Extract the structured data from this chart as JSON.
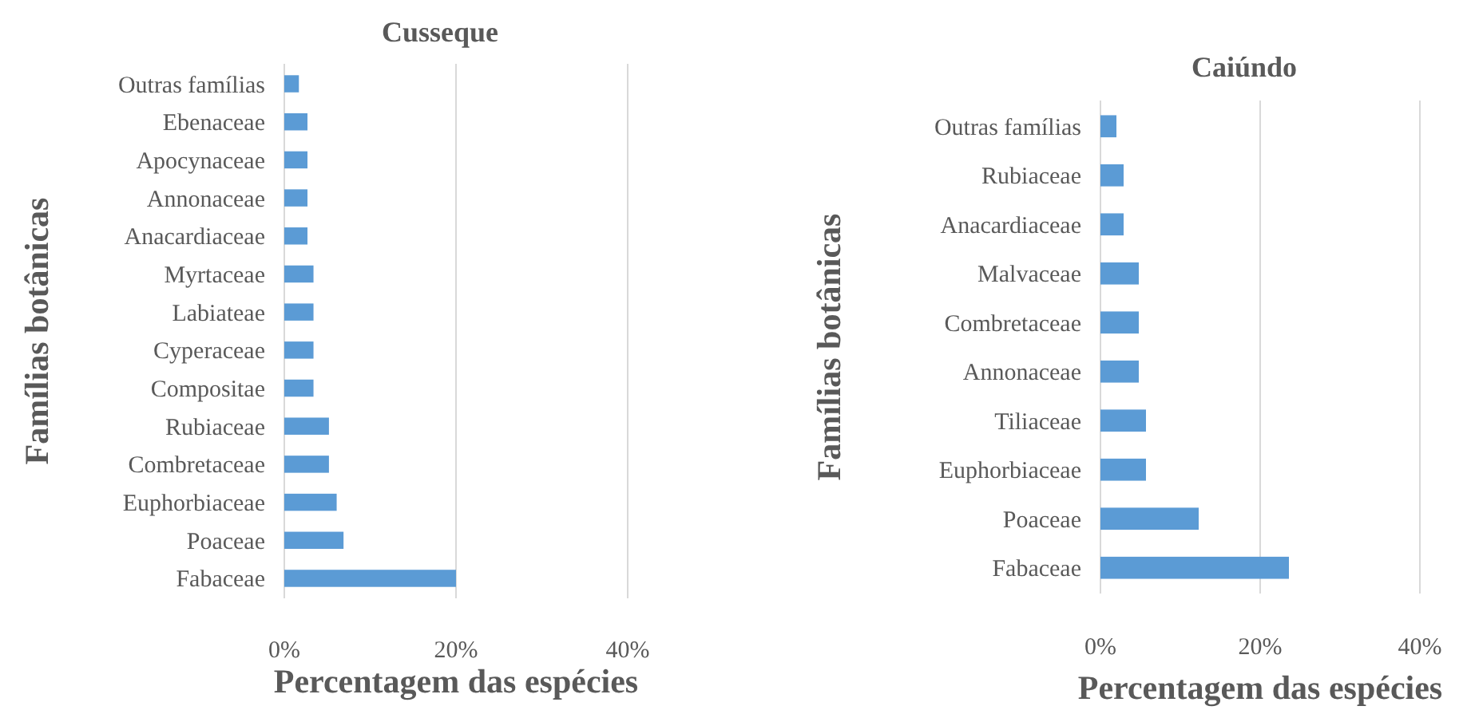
{
  "chart_data": [
    {
      "type": "bar",
      "orientation": "horizontal",
      "title": "Cusseque",
      "xlabel": "Percentagem das espécies",
      "ylabel": "Famílias botânicas",
      "categories": [
        "Outras famílias",
        "Ebenaceae",
        "Apocynaceae",
        "Annonaceae",
        "Anacardiaceae",
        "Myrtaceae",
        "Labiateae",
        "Cyperaceae",
        "Compositae",
        "Rubiaceae",
        "Combretaceae",
        "Euphorbiaceae",
        "Poaceae",
        "Fabaceae"
      ],
      "values": [
        1.7,
        2.7,
        2.7,
        2.7,
        2.7,
        3.4,
        3.4,
        3.4,
        3.4,
        5.2,
        5.2,
        6.1,
        6.9,
        20
      ],
      "color": "#5b9bd5",
      "xlim": [
        0,
        40
      ],
      "xticks": [
        {
          "value": 0,
          "label": "0%"
        },
        {
          "value": 20,
          "label": "20%"
        },
        {
          "value": 40,
          "label": "40%"
        }
      ],
      "grid": "x"
    },
    {
      "type": "bar",
      "orientation": "horizontal",
      "title": "Caiúndo",
      "xlabel": "Percentagem das espécies",
      "ylabel": "Famílias botânicas",
      "categories": [
        "Outras famílias",
        "Rubiaceae",
        "Anacardiaceae",
        "Malvaceae",
        "Combretaceae",
        "Annonaceae",
        "Tiliaceae",
        "Euphorbiaceae",
        "Poaceae",
        "Fabaceae"
      ],
      "values": [
        2.0,
        2.9,
        2.9,
        4.8,
        4.8,
        4.8,
        5.7,
        5.7,
        12.3,
        23.6
      ],
      "color": "#5b9bd5",
      "xlim": [
        0,
        40
      ],
      "xticks": [
        {
          "value": 0,
          "label": "0%"
        },
        {
          "value": 20,
          "label": "20%"
        },
        {
          "value": 40,
          "label": "40%"
        }
      ],
      "grid": "x"
    }
  ]
}
